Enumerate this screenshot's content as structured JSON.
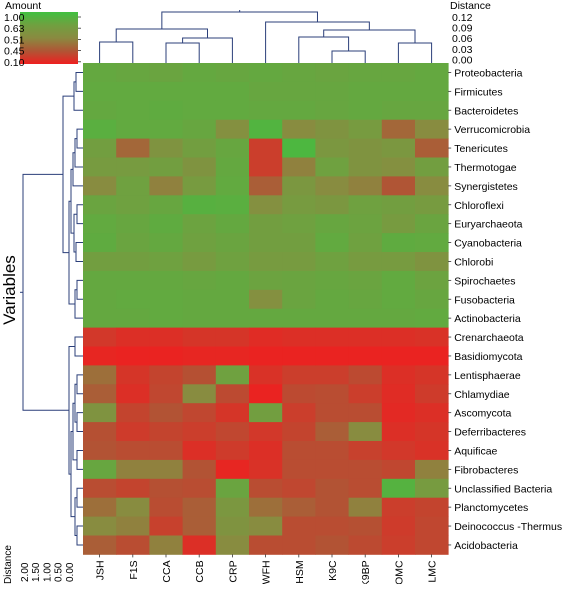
{
  "chart_data": {
    "type": "heatmap",
    "legend": {
      "title": "Amount",
      "ticks": [
        "1.00",
        "0.63",
        "0.51",
        "0.45",
        "0.10"
      ],
      "colors": [
        "#40c040",
        "#70a040",
        "#8a8a40",
        "#b05535",
        "#ee2020"
      ]
    },
    "top_distance": {
      "title": "Distance",
      "ticks": [
        "0.12",
        "0.09",
        "0.06",
        "0.03",
        "0.00"
      ]
    },
    "left_distance": {
      "title": "Distance",
      "ticks": [
        "2.00",
        "1.50",
        "1.00",
        "0.50",
        "0.00"
      ]
    },
    "ylabel": "Variables",
    "columns": [
      "JSH",
      "F1S",
      "CCA",
      "CCB",
      "CRP",
      "WFH",
      "HSM",
      "K9C",
      "K9BP",
      "OMC",
      "LMC"
    ],
    "rows": [
      "Proteobacteria",
      "Firmicutes",
      "Bacteroidetes",
      "Verrucomicrobia",
      "Tenericutes",
      "Thermotogae",
      "Synergistetes",
      "Chloroflexi",
      "Euryarchaeota",
      "Cyanobacteria",
      "Chlorobi",
      "Spirochaetes",
      "Fusobacteria",
      "Actinobacteria",
      "Crenarchaeota",
      "Basidiomycota",
      "Lentisphaerae",
      "Chlamydiae",
      "Ascomycota",
      "Deferribacteres",
      "Aquificae",
      "Fibrobacteres",
      "Unclassified Bacteria",
      "Planctomycetes",
      "Deinococcus -Thermus",
      "Acidobacteria"
    ],
    "values": [
      [
        0.72,
        0.7,
        0.68,
        0.72,
        0.7,
        0.72,
        0.7,
        0.68,
        0.7,
        0.7,
        0.72
      ],
      [
        0.74,
        0.74,
        0.74,
        0.74,
        0.74,
        0.7,
        0.7,
        0.7,
        0.72,
        0.72,
        0.72
      ],
      [
        0.72,
        0.74,
        0.76,
        0.74,
        0.74,
        0.72,
        0.72,
        0.7,
        0.72,
        0.7,
        0.7
      ],
      [
        0.8,
        0.74,
        0.74,
        0.7,
        0.54,
        0.86,
        0.52,
        0.56,
        0.6,
        0.47,
        0.52
      ],
      [
        0.62,
        0.47,
        0.56,
        0.62,
        0.7,
        0.3,
        0.9,
        0.58,
        0.56,
        0.58,
        0.46
      ],
      [
        0.6,
        0.6,
        0.62,
        0.56,
        0.72,
        0.3,
        0.5,
        0.64,
        0.56,
        0.54,
        0.62
      ],
      [
        0.52,
        0.64,
        0.5,
        0.6,
        0.74,
        0.46,
        0.58,
        0.52,
        0.5,
        0.45,
        0.52
      ],
      [
        0.68,
        0.64,
        0.7,
        0.82,
        0.8,
        0.54,
        0.6,
        0.58,
        0.64,
        0.62,
        0.6
      ],
      [
        0.74,
        0.7,
        0.76,
        0.66,
        0.72,
        0.62,
        0.64,
        0.7,
        0.66,
        0.6,
        0.68
      ],
      [
        0.76,
        0.68,
        0.72,
        0.64,
        0.68,
        0.62,
        0.62,
        0.74,
        0.64,
        0.76,
        0.74
      ],
      [
        0.62,
        0.62,
        0.64,
        0.6,
        0.64,
        0.6,
        0.6,
        0.64,
        0.6,
        0.6,
        0.56
      ],
      [
        0.72,
        0.72,
        0.72,
        0.7,
        0.72,
        0.66,
        0.68,
        0.7,
        0.68,
        0.74,
        0.66
      ],
      [
        0.72,
        0.74,
        0.74,
        0.72,
        0.72,
        0.54,
        0.68,
        0.72,
        0.7,
        0.74,
        0.7
      ],
      [
        0.72,
        0.72,
        0.74,
        0.72,
        0.72,
        0.72,
        0.72,
        0.72,
        0.72,
        0.72,
        0.74
      ],
      [
        0.26,
        0.2,
        0.2,
        0.24,
        0.24,
        0.18,
        0.2,
        0.2,
        0.2,
        0.2,
        0.22
      ],
      [
        0.14,
        0.12,
        0.12,
        0.14,
        0.14,
        0.12,
        0.12,
        0.12,
        0.12,
        0.12,
        0.12
      ],
      [
        0.48,
        0.24,
        0.34,
        0.42,
        0.64,
        0.22,
        0.3,
        0.3,
        0.38,
        0.2,
        0.24
      ],
      [
        0.46,
        0.2,
        0.36,
        0.52,
        0.38,
        0.12,
        0.38,
        0.4,
        0.3,
        0.18,
        0.28
      ],
      [
        0.56,
        0.34,
        0.44,
        0.36,
        0.24,
        0.62,
        0.3,
        0.4,
        0.4,
        0.16,
        0.2
      ],
      [
        0.42,
        0.28,
        0.34,
        0.3,
        0.36,
        0.26,
        0.34,
        0.46,
        0.52,
        0.2,
        0.24
      ],
      [
        0.44,
        0.4,
        0.4,
        0.2,
        0.28,
        0.2,
        0.4,
        0.4,
        0.32,
        0.26,
        0.22
      ],
      [
        0.7,
        0.5,
        0.5,
        0.44,
        0.14,
        0.22,
        0.4,
        0.4,
        0.4,
        0.36,
        0.5
      ],
      [
        0.4,
        0.34,
        0.42,
        0.4,
        0.68,
        0.4,
        0.36,
        0.44,
        0.4,
        0.84,
        0.6
      ],
      [
        0.48,
        0.52,
        0.4,
        0.46,
        0.58,
        0.48,
        0.46,
        0.44,
        0.5,
        0.3,
        0.34
      ],
      [
        0.52,
        0.5,
        0.32,
        0.46,
        0.56,
        0.52,
        0.4,
        0.4,
        0.42,
        0.28,
        0.36
      ],
      [
        0.46,
        0.4,
        0.5,
        0.2,
        0.52,
        0.4,
        0.4,
        0.44,
        0.38,
        0.3,
        0.36
      ]
    ]
  }
}
